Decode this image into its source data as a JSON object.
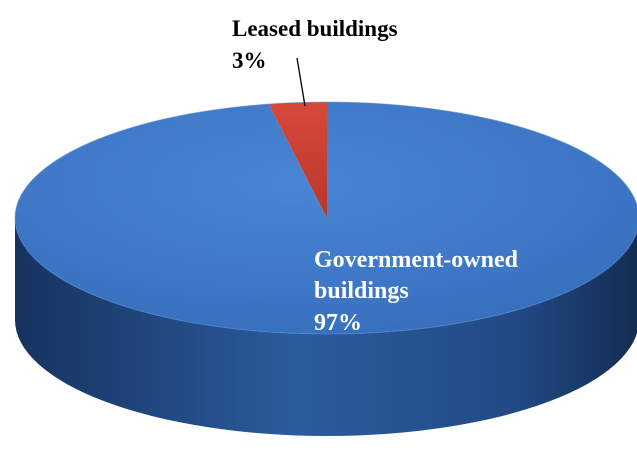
{
  "chart_data": {
    "type": "pie",
    "style": "3d",
    "slices": [
      {
        "label_lines": [
          "Government-owned",
          "buildings"
        ],
        "value_label": "97%",
        "value": 97,
        "color": "#3f79c8",
        "label_color": "#ffffff"
      },
      {
        "label_lines": [
          "Leased buildings"
        ],
        "value_label": "3%",
        "value": 3,
        "color": "#c0392b",
        "label_color": "#000000"
      }
    ],
    "legend": "none",
    "grid": false
  }
}
